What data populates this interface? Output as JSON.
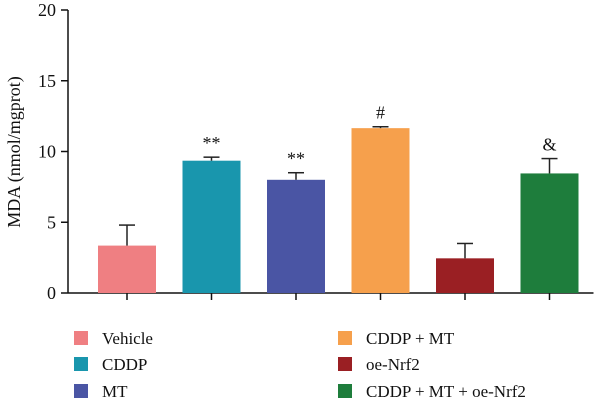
{
  "chart_data": {
    "type": "bar",
    "title": "",
    "xlabel": "",
    "ylabel": "MDA (nmol/mgprot)",
    "ylim": [
      0,
      20
    ],
    "yticks": [
      0,
      5,
      10,
      15,
      20
    ],
    "grid": false,
    "legend_position": "bottom",
    "categories": [
      "Vehicle",
      "CDDP",
      "MT",
      "CDDP + MT",
      "oe-Nrf2",
      "CDDP + MT + oe-Nrf2"
    ],
    "values": [
      3.35,
      9.35,
      8.0,
      11.65,
      2.45,
      8.45
    ],
    "errors": [
      1.45,
      0.25,
      0.5,
      0.1,
      1.05,
      1.05
    ],
    "colors": [
      "#ef7f82",
      "#1996ad",
      "#4a55a4",
      "#f6a04c",
      "#9a1f23",
      "#1e7d3c"
    ],
    "annotations": [
      "",
      "**",
      "**",
      "#",
      "",
      "&"
    ]
  }
}
